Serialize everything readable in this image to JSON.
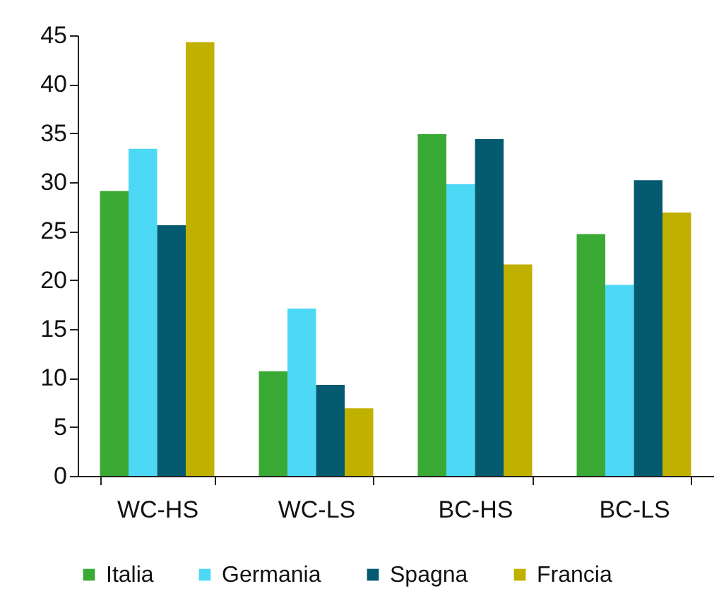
{
  "chart_data": {
    "type": "bar",
    "categories": [
      "WC-HS",
      "WC-LS",
      "BC-HS",
      "BC-LS"
    ],
    "series": [
      {
        "name": "Italia",
        "color": "#3aaa35",
        "values": [
          29.1,
          10.7,
          34.9,
          24.7
        ]
      },
      {
        "name": "Germania",
        "color": "#4dd9f5",
        "values": [
          33.4,
          17.1,
          29.8,
          19.5
        ]
      },
      {
        "name": "Spagna",
        "color": "#045a6e",
        "values": [
          25.6,
          9.3,
          34.4,
          30.2
        ]
      },
      {
        "name": "Francia",
        "color": "#c0b000",
        "values": [
          44.3,
          6.9,
          21.6,
          26.9
        ]
      }
    ],
    "ylim": [
      0,
      45
    ],
    "yticks": [
      0,
      5,
      10,
      15,
      20,
      25,
      30,
      35,
      40,
      45
    ],
    "grid": false,
    "legend": "bottom"
  }
}
